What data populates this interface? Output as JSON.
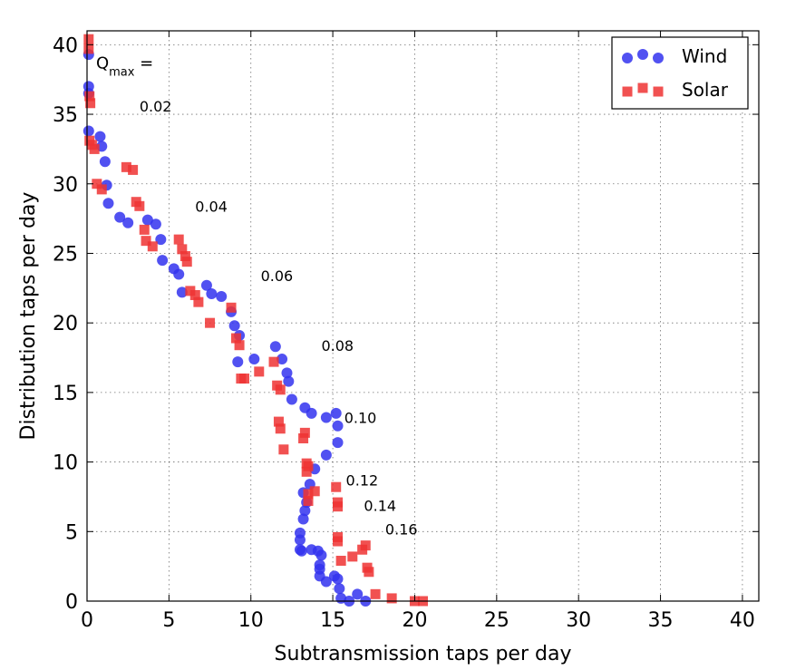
{
  "chart_data": {
    "type": "scatter",
    "xlabel": "Subtransmission taps per day",
    "ylabel": "Distribution taps per day",
    "xlim": [
      0,
      41
    ],
    "ylim": [
      0,
      41
    ],
    "xticks": [
      0,
      5,
      10,
      15,
      20,
      25,
      30,
      35,
      40
    ],
    "yticks": [
      0,
      5,
      10,
      15,
      20,
      25,
      30,
      35,
      40
    ],
    "grid": true,
    "legend_position": "top-right",
    "annotation_title": {
      "main": "Q",
      "sub": "max",
      "suffix": " ="
    },
    "annotations": [
      {
        "text": "0.02",
        "x": 3.2,
        "y": 35.2
      },
      {
        "text": "0.04",
        "x": 6.6,
        "y": 28.0
      },
      {
        "text": "0.06",
        "x": 10.6,
        "y": 23.0
      },
      {
        "text": "0.08",
        "x": 14.3,
        "y": 18.0
      },
      {
        "text": "0.10",
        "x": 15.7,
        "y": 12.8
      },
      {
        "text": "0.12",
        "x": 15.8,
        "y": 8.3
      },
      {
        "text": "0.14",
        "x": 16.9,
        "y": 6.5
      },
      {
        "text": "0.16",
        "x": 18.2,
        "y": 4.8
      }
    ],
    "series": [
      {
        "name": "Wind",
        "marker": "circle",
        "color": "#3333ee",
        "points": [
          [
            0.1,
            39.3
          ],
          [
            0.1,
            37.0
          ],
          [
            0.1,
            36.5
          ],
          [
            0.1,
            33.8
          ],
          [
            0.8,
            33.4
          ],
          [
            0.9,
            32.7
          ],
          [
            1.1,
            31.6
          ],
          [
            1.2,
            29.9
          ],
          [
            1.3,
            28.6
          ],
          [
            2.0,
            27.6
          ],
          [
            2.5,
            27.2
          ],
          [
            3.7,
            27.4
          ],
          [
            4.2,
            27.1
          ],
          [
            4.5,
            26.0
          ],
          [
            4.6,
            24.5
          ],
          [
            5.3,
            23.9
          ],
          [
            5.6,
            23.5
          ],
          [
            5.8,
            22.2
          ],
          [
            7.3,
            22.7
          ],
          [
            7.6,
            22.1
          ],
          [
            8.2,
            21.9
          ],
          [
            8.8,
            20.8
          ],
          [
            9.0,
            19.8
          ],
          [
            9.3,
            19.1
          ],
          [
            9.2,
            17.2
          ],
          [
            10.2,
            17.4
          ],
          [
            11.5,
            18.3
          ],
          [
            11.9,
            17.4
          ],
          [
            12.2,
            16.4
          ],
          [
            12.3,
            15.8
          ],
          [
            12.5,
            14.5
          ],
          [
            13.3,
            13.9
          ],
          [
            13.7,
            13.5
          ],
          [
            14.6,
            13.2
          ],
          [
            15.2,
            13.5
          ],
          [
            15.3,
            12.6
          ],
          [
            15.3,
            11.4
          ],
          [
            14.6,
            10.5
          ],
          [
            13.9,
            9.5
          ],
          [
            13.6,
            8.4
          ],
          [
            13.2,
            7.8
          ],
          [
            13.4,
            7.1
          ],
          [
            13.3,
            6.5
          ],
          [
            13.2,
            5.9
          ],
          [
            13.0,
            4.9
          ],
          [
            13.0,
            4.4
          ],
          [
            13.0,
            3.7
          ],
          [
            13.1,
            3.6
          ],
          [
            13.7,
            3.7
          ],
          [
            14.1,
            3.6
          ],
          [
            14.3,
            3.3
          ],
          [
            14.2,
            2.6
          ],
          [
            14.2,
            2.3
          ],
          [
            14.2,
            1.8
          ],
          [
            14.6,
            1.4
          ],
          [
            15.1,
            1.8
          ],
          [
            15.3,
            1.6
          ],
          [
            15.4,
            0.9
          ],
          [
            15.5,
            0.2
          ],
          [
            16.0,
            0.0
          ],
          [
            16.5,
            0.5
          ],
          [
            17.0,
            0.0
          ]
        ]
      },
      {
        "name": "Solar",
        "marker": "square",
        "color": "#ee3333",
        "points": [
          [
            0.1,
            40.4
          ],
          [
            0.1,
            39.7
          ],
          [
            0.15,
            36.3
          ],
          [
            0.2,
            35.8
          ],
          [
            0.15,
            33.1
          ],
          [
            0.3,
            32.8
          ],
          [
            0.45,
            32.5
          ],
          [
            0.6,
            30.0
          ],
          [
            0.9,
            29.6
          ],
          [
            2.4,
            31.2
          ],
          [
            2.8,
            31.0
          ],
          [
            3.0,
            28.7
          ],
          [
            3.2,
            28.4
          ],
          [
            3.5,
            26.7
          ],
          [
            3.6,
            25.9
          ],
          [
            4.0,
            25.5
          ],
          [
            5.6,
            26.0
          ],
          [
            5.8,
            25.3
          ],
          [
            6.0,
            24.8
          ],
          [
            6.1,
            24.4
          ],
          [
            6.3,
            22.3
          ],
          [
            6.6,
            22.0
          ],
          [
            6.8,
            21.5
          ],
          [
            7.5,
            20.0
          ],
          [
            8.8,
            21.1
          ],
          [
            9.1,
            18.9
          ],
          [
            9.3,
            18.4
          ],
          [
            9.4,
            16.0
          ],
          [
            9.6,
            16.0
          ],
          [
            10.5,
            16.5
          ],
          [
            11.4,
            17.2
          ],
          [
            11.6,
            15.5
          ],
          [
            11.8,
            15.2
          ],
          [
            11.7,
            12.9
          ],
          [
            11.8,
            12.4
          ],
          [
            12.0,
            10.9
          ],
          [
            13.3,
            12.1
          ],
          [
            13.2,
            11.7
          ],
          [
            13.4,
            9.9
          ],
          [
            13.5,
            9.7
          ],
          [
            13.4,
            9.3
          ],
          [
            13.9,
            7.9
          ],
          [
            13.5,
            7.2
          ],
          [
            13.5,
            7.7
          ],
          [
            15.2,
            8.2
          ],
          [
            15.3,
            7.1
          ],
          [
            15.3,
            6.8
          ],
          [
            15.3,
            4.6
          ],
          [
            15.3,
            4.3
          ],
          [
            15.5,
            2.9
          ],
          [
            16.2,
            3.2
          ],
          [
            16.8,
            3.7
          ],
          [
            17.0,
            4.0
          ],
          [
            17.1,
            2.4
          ],
          [
            17.2,
            2.1
          ],
          [
            17.6,
            0.5
          ],
          [
            18.6,
            0.2
          ],
          [
            20.0,
            0.0
          ],
          [
            20.5,
            0.0
          ]
        ]
      }
    ]
  }
}
